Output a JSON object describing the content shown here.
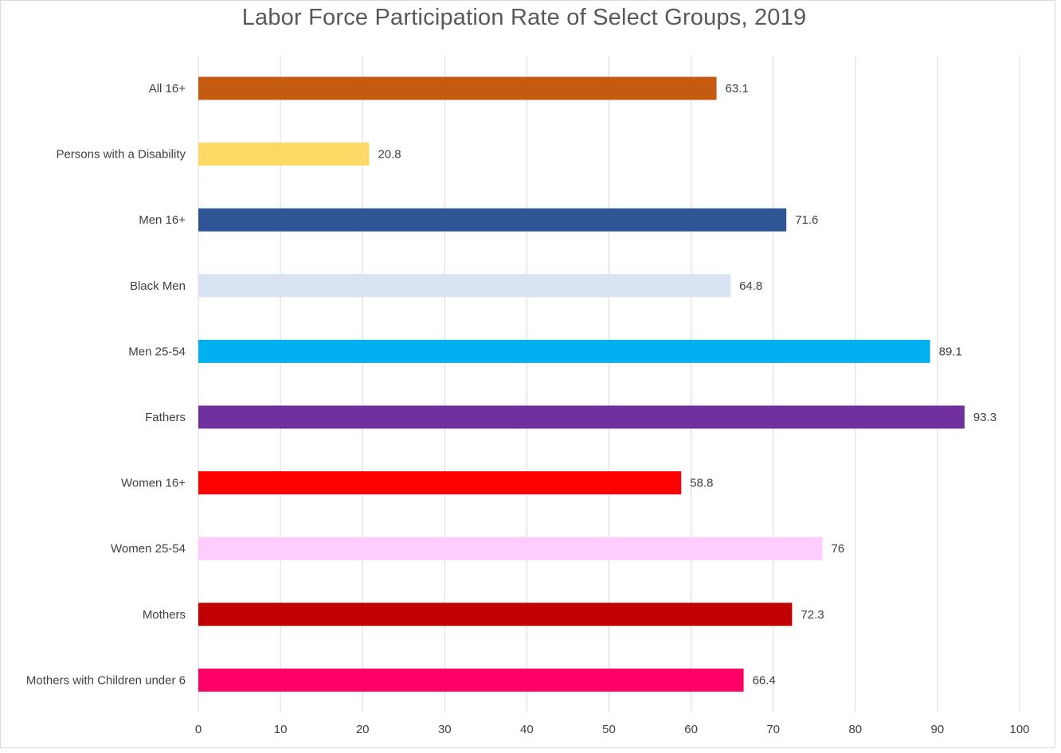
{
  "chart_data": {
    "type": "bar",
    "orientation": "horizontal",
    "title": "Labor Force Participation Rate of Select Groups, 2019",
    "categories": [
      "All 16+",
      "Persons with a Disability",
      "Men 16+",
      "Black Men",
      "Men 25-54",
      "Fathers",
      "Women 16+",
      "Women 25-54",
      "Mothers",
      "Mothers with Children under 6"
    ],
    "values": [
      63.1,
      20.8,
      71.6,
      64.8,
      89.1,
      93.3,
      58.8,
      76,
      72.3,
      66.4
    ],
    "data_labels": [
      "63.1",
      "20.8",
      "71.6",
      "64.8",
      "89.1",
      "93.3",
      "58.8",
      "76",
      "72.3",
      "66.4"
    ],
    "colors": [
      "#c55a11",
      "#ffd966",
      "#2f5597",
      "#dae3f3",
      "#00b0f0",
      "#7030a0",
      "#ff0000",
      "#ffccff",
      "#c00000",
      "#ff0066"
    ],
    "xlim": [
      0,
      100
    ],
    "xticks": [
      "0",
      "10",
      "20",
      "30",
      "40",
      "50",
      "60",
      "70",
      "80",
      "90",
      "100"
    ],
    "grid": true,
    "gridline_color": "#d9d9d9",
    "xlabel": "",
    "ylabel": ""
  }
}
